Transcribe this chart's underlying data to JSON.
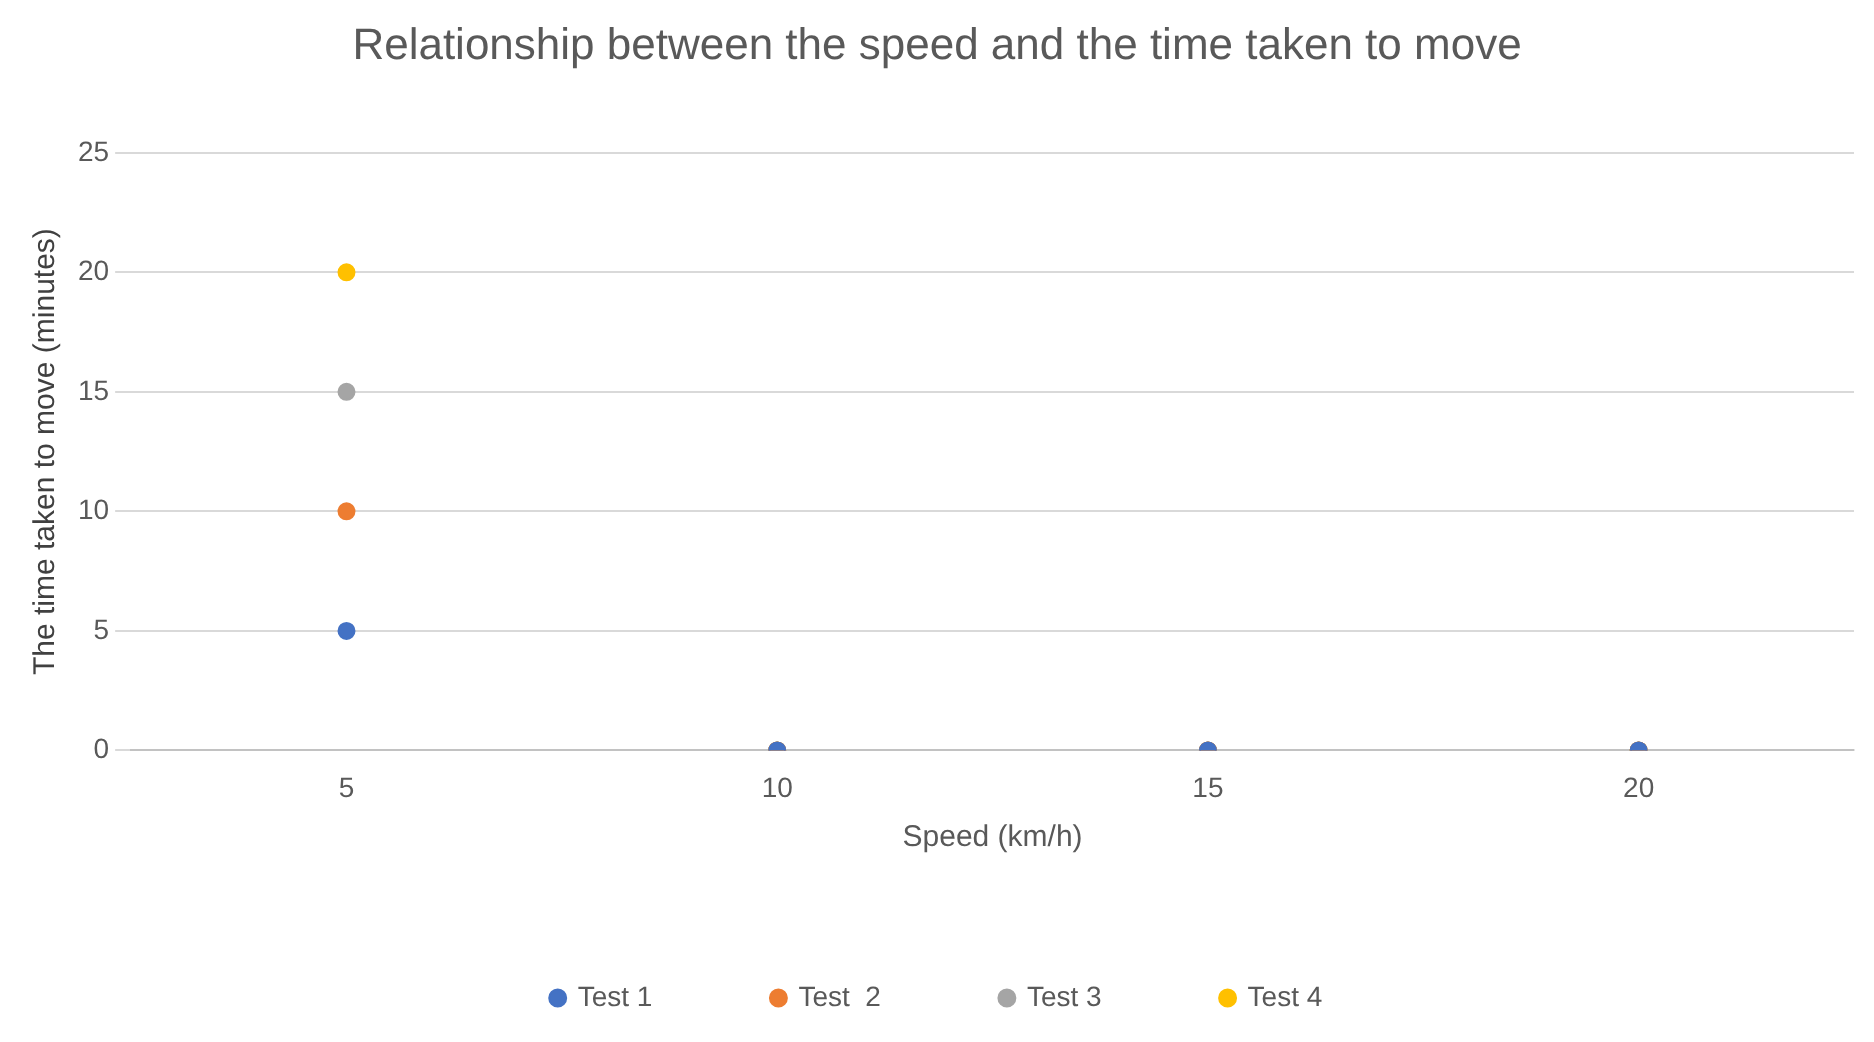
{
  "chart_data": {
    "type": "scatter",
    "title": "Relationship between the speed and the time taken to move",
    "xlabel": "Speed (km/h)",
    "ylabel": "The time taken to move (minutes)",
    "categories": [
      "5",
      "10",
      "15",
      "20"
    ],
    "series": [
      {
        "name": "Test 1",
        "color": "#4472c4",
        "values": [
          5,
          0,
          0,
          0
        ]
      },
      {
        "name": "Test  2",
        "color": "#ed7d31",
        "values": [
          10,
          0,
          0,
          0
        ]
      },
      {
        "name": "Test 3",
        "color": "#a5a5a5",
        "values": [
          15,
          0,
          0,
          0
        ]
      },
      {
        "name": "Test 4",
        "color": "#ffc000",
        "values": [
          20,
          0,
          0,
          0
        ]
      }
    ],
    "ylim": [
      0,
      25
    ],
    "yticks": [
      0,
      5,
      10,
      15,
      20,
      25
    ],
    "grid": "y",
    "legend": "bottom",
    "marker": "circle"
  }
}
